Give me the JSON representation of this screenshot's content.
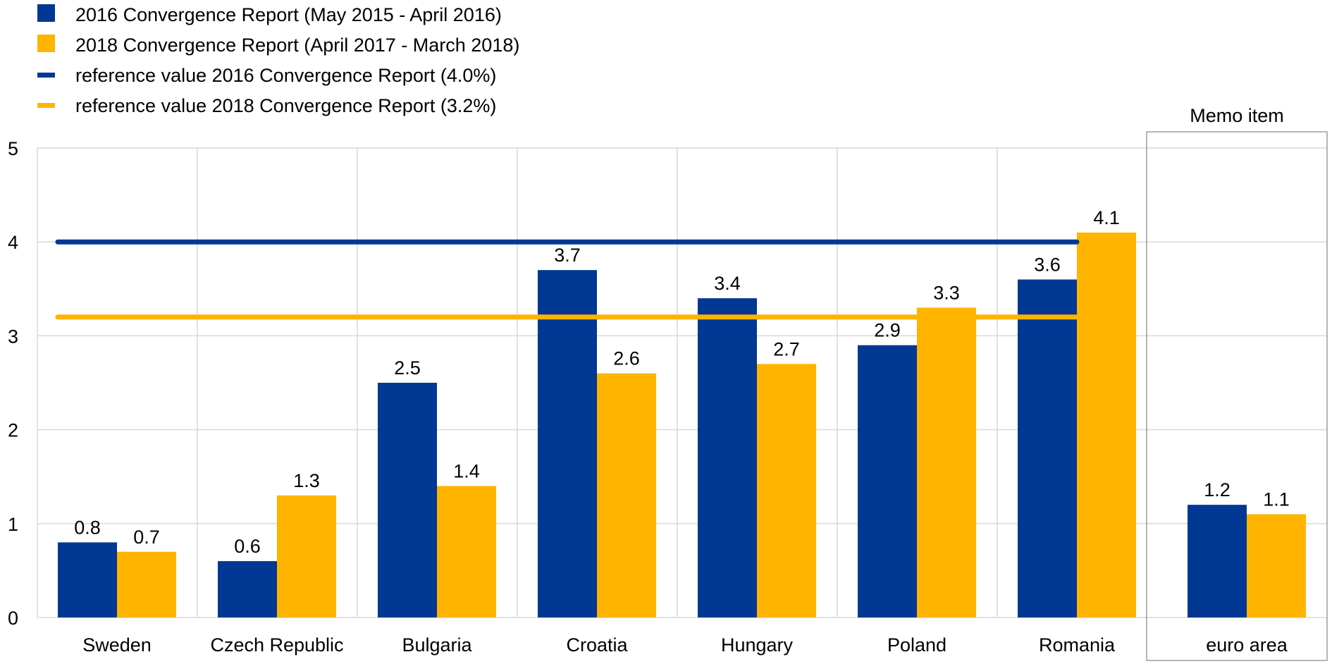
{
  "chart_data": {
    "type": "bar",
    "title": "",
    "xlabel": "",
    "ylabel": "",
    "ylim": [
      0,
      5
    ],
    "yticks": [
      0,
      1,
      2,
      3,
      4,
      5
    ],
    "grid": true,
    "categories": [
      "Sweden",
      "Czech Republic",
      "Bulgaria",
      "Croatia",
      "Hungary",
      "Poland",
      "Romania",
      "euro area"
    ],
    "series": [
      {
        "name": "2016 Convergence Report (May 2015 - April 2016)",
        "color": "#003894",
        "values": [
          0.8,
          0.6,
          2.5,
          3.7,
          3.4,
          2.9,
          3.6,
          1.2
        ],
        "labels": [
          "0.8",
          "0.6",
          "2.5",
          "3.7",
          "3.4",
          "2.9",
          "3.6",
          "1.2"
        ]
      },
      {
        "name": "2018 Convergence Report (April 2017 - March 2018)",
        "color": "#FFB400",
        "values": [
          0.7,
          1.3,
          1.4,
          2.6,
          2.7,
          3.3,
          4.1,
          1.1
        ],
        "labels": [
          "0.7",
          "1.3",
          "1.4",
          "2.6",
          "2.7",
          "3.3",
          "4.1",
          "1.1"
        ]
      }
    ],
    "reference_lines": [
      {
        "name": "reference value 2016 Convergence Report (4.0%)",
        "color": "#003894",
        "value": 4.0
      },
      {
        "name": "reference value 2018 Convergence Report (3.2%)",
        "color": "#FFB400",
        "value": 3.2
      }
    ],
    "memo": {
      "label": "Memo item",
      "category": "euro area"
    },
    "legend_position": "top-left"
  }
}
